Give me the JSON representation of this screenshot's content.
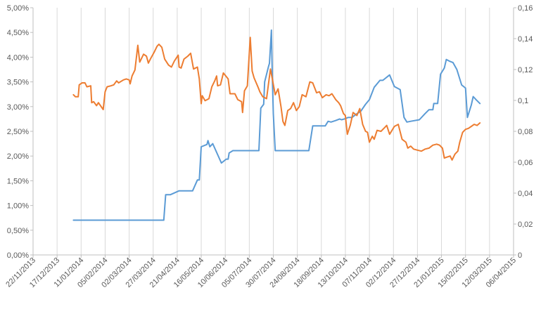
{
  "chart_data": {
    "type": "line",
    "title": "",
    "xlabel": "",
    "ylabel": "",
    "y2label": "",
    "x_ticks": [
      "22/11/2013",
      "17/12/2013",
      "11/01/2014",
      "05/02/2014",
      "02/03/2014",
      "27/03/2014",
      "21/04/2014",
      "16/05/2014",
      "10/06/2014",
      "05/07/2014",
      "30/07/2014",
      "24/08/2014",
      "18/09/2014",
      "13/10/2014",
      "07/11/2014",
      "02/12/2014",
      "27/12/2014",
      "21/01/2015",
      "15/02/2015",
      "12/03/2015",
      "06/04/2015"
    ],
    "xlim": [
      "22/11/2013",
      "06/04/2015"
    ],
    "y_left_ticks": [
      "0,00%",
      "0,50%",
      "1,00%",
      "1,50%",
      "2,00%",
      "2,50%",
      "3,00%",
      "3,50%",
      "4,00%",
      "4,50%",
      "5,00%"
    ],
    "ylim_left": [
      0,
      5
    ],
    "y_right_ticks": [
      "0",
      "0,02",
      "0,04",
      "0,06",
      "0,08",
      "0,1",
      "0,12",
      "0,14",
      "0,16"
    ],
    "ylim_right": [
      0,
      0.16
    ],
    "grid": "vertical",
    "legend": "none",
    "series": [
      {
        "axis": "right",
        "color": "#5B9BD5",
        "points": [
          [
            "03/01/2014",
            0.0225
          ],
          [
            "07/04/2014",
            0.0225
          ],
          [
            "09/04/2014",
            0.039
          ],
          [
            "14/04/2014",
            0.039
          ],
          [
            "23/04/2014",
            0.0415
          ],
          [
            "07/05/2014",
            0.0415
          ],
          [
            "12/05/2014",
            0.0485
          ],
          [
            "14/05/2014",
            0.0485
          ],
          [
            "16/05/2014",
            0.07
          ],
          [
            "22/05/2014",
            0.0715
          ],
          [
            "23/05/2014",
            0.074
          ],
          [
            "25/05/2014",
            0.07
          ],
          [
            "28/05/2014",
            0.072
          ],
          [
            "06/06/2014",
            0.0595
          ],
          [
            "11/06/2014",
            0.062
          ],
          [
            "13/06/2014",
            0.062
          ],
          [
            "14/06/2014",
            0.066
          ],
          [
            "18/06/2014",
            0.0675
          ],
          [
            "15/07/2014",
            0.0675
          ],
          [
            "17/07/2014",
            0.095
          ],
          [
            "20/07/2014",
            0.0975
          ],
          [
            "21/07/2014",
            0.112
          ],
          [
            "25/07/2014",
            0.122
          ],
          [
            "26/07/2014",
            0.124
          ],
          [
            "28/07/2014",
            0.1455
          ],
          [
            "29/07/2014",
            0.115
          ],
          [
            "30/07/2014",
            0.0915
          ],
          [
            "01/08/2014",
            0.0675
          ],
          [
            "05/09/2014",
            0.0675
          ],
          [
            "09/09/2014",
            0.0835
          ],
          [
            "22/09/2014",
            0.0835
          ],
          [
            "25/09/2014",
            0.0865
          ],
          [
            "28/09/2014",
            0.086
          ],
          [
            "03/10/2014",
            0.087
          ],
          [
            "07/10/2014",
            0.088
          ],
          [
            "09/10/2014",
            0.0875
          ],
          [
            "12/10/2014",
            0.088
          ],
          [
            "16/10/2014",
            0.089
          ],
          [
            "20/10/2014",
            0.089
          ],
          [
            "24/10/2014",
            0.091
          ],
          [
            "29/10/2014",
            0.093
          ],
          [
            "03/11/2014",
            0.0975
          ],
          [
            "07/11/2014",
            0.1005
          ],
          [
            "12/11/2014",
            0.1085
          ],
          [
            "18/11/2014",
            0.113
          ],
          [
            "21/11/2014",
            0.113
          ],
          [
            "28/11/2014",
            0.1165
          ],
          [
            "03/12/2014",
            0.109
          ],
          [
            "09/12/2014",
            0.107
          ],
          [
            "13/12/2014",
            0.089
          ],
          [
            "16/12/2014",
            0.086
          ],
          [
            "20/12/2014",
            0.0865
          ],
          [
            "29/12/2014",
            0.0875
          ],
          [
            "04/01/2015",
            0.0915
          ],
          [
            "08/01/2015",
            0.094
          ],
          [
            "12/01/2015",
            0.094
          ],
          [
            "13/01/2015",
            0.098
          ],
          [
            "17/01/2015",
            0.098
          ],
          [
            "20/01/2015",
            0.117
          ],
          [
            "24/01/2015",
            0.121
          ],
          [
            "26/01/2015",
            0.1265
          ],
          [
            "29/01/2015",
            0.1255
          ],
          [
            "02/02/2015",
            0.1245
          ],
          [
            "06/02/2015",
            0.12
          ],
          [
            "11/02/2015",
            0.11
          ],
          [
            "15/02/2015",
            0.108
          ],
          [
            "17/02/2015",
            0.089
          ],
          [
            "21/02/2015",
            0.097
          ],
          [
            "23/02/2015",
            0.1025
          ],
          [
            "26/02/2015",
            0.1005
          ],
          [
            "02/03/2015",
            0.098
          ]
        ]
      },
      {
        "axis": "left",
        "color": "#ED7D31",
        "points": [
          [
            "03/01/2014",
            3.24
          ],
          [
            "05/01/2014",
            3.2
          ],
          [
            "08/01/2014",
            3.2
          ],
          [
            "09/01/2014",
            3.44
          ],
          [
            "12/01/2014",
            3.48
          ],
          [
            "15/01/2014",
            3.48
          ],
          [
            "17/01/2014",
            3.4
          ],
          [
            "21/01/2014",
            3.42
          ],
          [
            "22/01/2014",
            3.08
          ],
          [
            "24/01/2014",
            3.1
          ],
          [
            "27/01/2014",
            3.02
          ],
          [
            "29/01/2014",
            3.08
          ],
          [
            "03/02/2014",
            2.94
          ],
          [
            "05/02/2014",
            3.3
          ],
          [
            "07/02/2014",
            3.4
          ],
          [
            "11/02/2014",
            3.42
          ],
          [
            "14/02/2014",
            3.44
          ],
          [
            "17/02/2014",
            3.52
          ],
          [
            "19/02/2014",
            3.48
          ],
          [
            "24/02/2014",
            3.54
          ],
          [
            "27/02/2014",
            3.56
          ],
          [
            "02/03/2014",
            3.54
          ],
          [
            "03/03/2014",
            3.46
          ],
          [
            "05/03/2014",
            3.62
          ],
          [
            "08/03/2014",
            3.74
          ],
          [
            "11/03/2014",
            4.24
          ],
          [
            "13/03/2014",
            3.9
          ],
          [
            "17/03/2014",
            4.06
          ],
          [
            "20/03/2014",
            4.02
          ],
          [
            "22/03/2014",
            3.88
          ],
          [
            "24/03/2014",
            3.96
          ],
          [
            "28/03/2014",
            4.1
          ],
          [
            "31/03/2014",
            4.22
          ],
          [
            "02/04/2014",
            4.26
          ],
          [
            "05/04/2014",
            4.2
          ],
          [
            "08/04/2014",
            3.96
          ],
          [
            "12/04/2014",
            3.84
          ],
          [
            "15/04/2014",
            3.8
          ],
          [
            "18/04/2014",
            3.92
          ],
          [
            "22/04/2014",
            4.04
          ],
          [
            "23/04/2014",
            3.8
          ],
          [
            "25/04/2014",
            3.78
          ],
          [
            "28/04/2014",
            3.96
          ],
          [
            "02/05/2014",
            4.02
          ],
          [
            "05/05/2014",
            4.08
          ],
          [
            "08/05/2014",
            3.76
          ],
          [
            "12/05/2014",
            3.8
          ],
          [
            "14/05/2014",
            3.56
          ],
          [
            "16/05/2014",
            3.06
          ],
          [
            "17/05/2014",
            3.22
          ],
          [
            "20/05/2014",
            3.12
          ],
          [
            "24/05/2014",
            3.16
          ],
          [
            "27/05/2014",
            3.4
          ],
          [
            "30/05/2014",
            3.52
          ],
          [
            "01/06/2014",
            3.62
          ],
          [
            "02/06/2014",
            3.42
          ],
          [
            "05/06/2014",
            3.44
          ],
          [
            "08/06/2014",
            3.68
          ],
          [
            "13/06/2014",
            3.56
          ],
          [
            "15/06/2014",
            3.26
          ],
          [
            "20/06/2014",
            3.26
          ],
          [
            "23/06/2014",
            3.14
          ],
          [
            "27/06/2014",
            3.1
          ],
          [
            "28/06/2014",
            2.88
          ],
          [
            "30/06/2014",
            3.32
          ],
          [
            "03/07/2014",
            3.42
          ],
          [
            "06/07/2014",
            4.4
          ],
          [
            "08/07/2014",
            3.72
          ],
          [
            "10/07/2014",
            3.58
          ],
          [
            "14/07/2014",
            3.4
          ],
          [
            "16/07/2014",
            3.3
          ],
          [
            "19/07/2014",
            3.2
          ],
          [
            "23/07/2014",
            3.16
          ],
          [
            "27/07/2014",
            3.76
          ],
          [
            "29/07/2014",
            3.56
          ],
          [
            "01/08/2014",
            3.24
          ],
          [
            "04/08/2014",
            3.36
          ],
          [
            "07/08/2014",
            3.0
          ],
          [
            "09/08/2014",
            2.7
          ],
          [
            "11/08/2014",
            2.62
          ],
          [
            "14/08/2014",
            2.92
          ],
          [
            "17/08/2014",
            2.96
          ],
          [
            "20/08/2014",
            3.08
          ],
          [
            "23/08/2014",
            2.92
          ],
          [
            "26/08/2014",
            3.0
          ],
          [
            "29/08/2014",
            3.24
          ],
          [
            "02/09/2014",
            3.2
          ],
          [
            "06/09/2014",
            3.5
          ],
          [
            "09/09/2014",
            3.48
          ],
          [
            "13/09/2014",
            3.28
          ],
          [
            "16/09/2014",
            3.3
          ],
          [
            "19/09/2014",
            3.18
          ],
          [
            "23/09/2014",
            3.24
          ],
          [
            "26/09/2014",
            3.22
          ],
          [
            "29/09/2014",
            3.26
          ],
          [
            "03/10/2014",
            3.14
          ],
          [
            "06/10/2014",
            3.08
          ],
          [
            "08/10/2014",
            3.02
          ],
          [
            "11/10/2014",
            2.86
          ],
          [
            "13/10/2014",
            2.82
          ],
          [
            "15/10/2014",
            2.44
          ],
          [
            "18/10/2014",
            2.62
          ],
          [
            "21/10/2014",
            2.88
          ],
          [
            "25/10/2014",
            2.82
          ],
          [
            "28/10/2014",
            2.96
          ],
          [
            "31/10/2014",
            2.64
          ],
          [
            "03/11/2014",
            2.5
          ],
          [
            "05/11/2014",
            2.48
          ],
          [
            "07/11/2014",
            2.28
          ],
          [
            "10/11/2014",
            2.4
          ],
          [
            "12/11/2014",
            2.34
          ],
          [
            "15/11/2014",
            2.52
          ],
          [
            "19/11/2014",
            2.5
          ],
          [
            "23/11/2014",
            2.58
          ],
          [
            "25/11/2014",
            2.62
          ],
          [
            "28/11/2014",
            2.44
          ],
          [
            "03/12/2014",
            2.6
          ],
          [
            "07/12/2014",
            2.64
          ],
          [
            "11/12/2014",
            2.34
          ],
          [
            "15/12/2014",
            2.28
          ],
          [
            "17/12/2014",
            2.16
          ],
          [
            "20/12/2014",
            2.2
          ],
          [
            "23/12/2014",
            2.14
          ],
          [
            "27/12/2014",
            2.12
          ],
          [
            "31/12/2014",
            2.1
          ],
          [
            "04/01/2015",
            2.14
          ],
          [
            "08/01/2015",
            2.16
          ],
          [
            "12/01/2015",
            2.22
          ],
          [
            "16/01/2015",
            2.24
          ],
          [
            "19/01/2015",
            2.22
          ],
          [
            "22/01/2015",
            2.16
          ],
          [
            "24/01/2015",
            1.96
          ],
          [
            "27/01/2015",
            1.98
          ],
          [
            "30/01/2015",
            2.0
          ],
          [
            "01/02/2015",
            1.92
          ],
          [
            "04/02/2015",
            2.04
          ],
          [
            "07/02/2015",
            2.1
          ],
          [
            "09/02/2015",
            2.28
          ],
          [
            "12/02/2015",
            2.48
          ],
          [
            "15/02/2015",
            2.54
          ],
          [
            "18/02/2015",
            2.56
          ],
          [
            "21/02/2015",
            2.6
          ],
          [
            "24/02/2015",
            2.64
          ],
          [
            "27/02/2015",
            2.62
          ],
          [
            "02/03/2015",
            2.67
          ]
        ]
      }
    ]
  }
}
